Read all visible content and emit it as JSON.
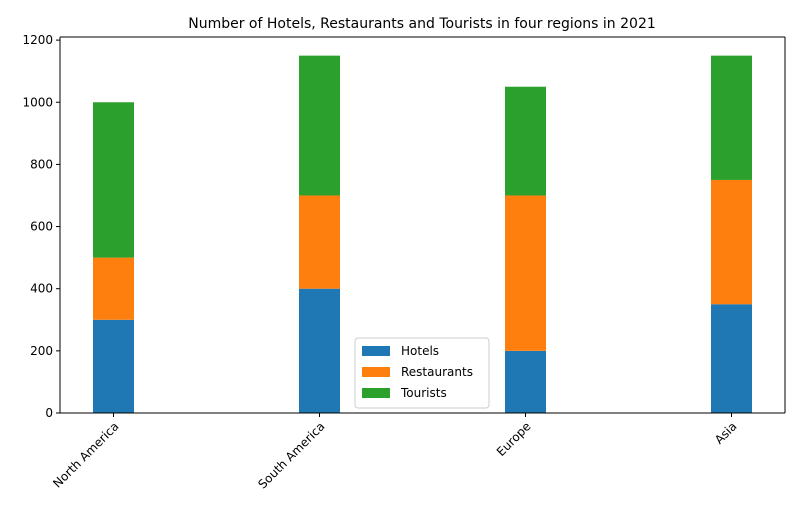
{
  "chart_data": {
    "type": "bar",
    "stacked": true,
    "title": "Number of Hotels, Restaurants and Tourists in four regions in 2021",
    "xlabel": "",
    "ylabel": "",
    "categories": [
      "North America",
      "South America",
      "Europe",
      "Asia"
    ],
    "series": [
      {
        "name": "Hotels",
        "values": [
          300,
          400,
          200,
          350
        ],
        "color": "#1f77b4"
      },
      {
        "name": "Restaurants",
        "values": [
          200,
          300,
          500,
          400
        ],
        "color": "#ff7f0e"
      },
      {
        "name": "Tourists",
        "values": [
          500,
          450,
          350,
          400
        ],
        "color": "#2ca02c"
      }
    ],
    "ylim": [
      0,
      1210
    ],
    "yticks": [
      0,
      200,
      400,
      600,
      800,
      1000,
      1200
    ],
    "grid": false,
    "legend_position": "bottom-center"
  }
}
